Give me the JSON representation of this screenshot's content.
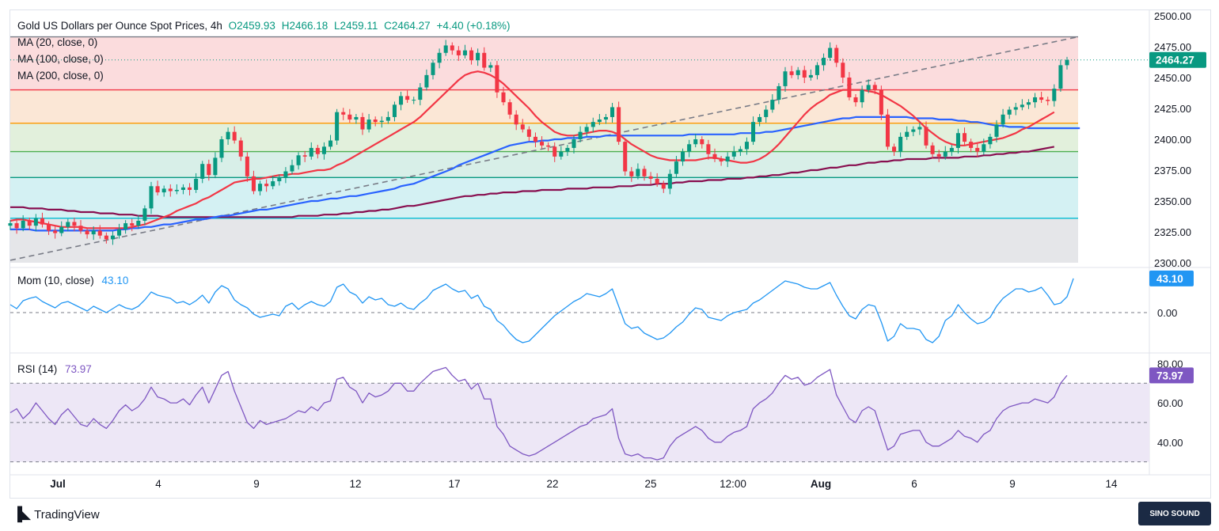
{
  "header": {
    "symbol": "Gold US Dollars per Ounce Spot Prices, 4h",
    "open": "O2459.93",
    "high": "H2466.18",
    "low": "L2459.11",
    "close": "C2464.27",
    "change": "+4.40 (+0.18%)"
  },
  "indicators": {
    "ma20": "MA (20, close, 0)",
    "ma100": "MA (100, close, 0)",
    "ma200": "MA (200, close, 0)",
    "mom_label": "Mom (10, close)",
    "mom_value": "43.10",
    "rsi_label": "RSI (14)",
    "rsi_value": "73.97"
  },
  "price_badge": "2464.27",
  "footer": {
    "brand": "TradingView",
    "watermark": "SINO SOUND"
  },
  "colors": {
    "up": "#089981",
    "down": "#f23645",
    "ma20": "#f23645",
    "ma100": "#2962ff",
    "ma200": "#880e4f",
    "mom": "#2196f3",
    "rsi": "#7e57c2"
  },
  "chart_data": [
    {
      "type": "candlestick",
      "title": "Gold US Dollars per Ounce Spot Prices, 4h",
      "ylim": [
        2300,
        2500
      ],
      "yticks": [
        "2500.00",
        "2475.00",
        "2450.00",
        "2425.00",
        "2400.00",
        "2375.00",
        "2350.00",
        "2325.00",
        "2300.00"
      ],
      "xticks": [
        "Jul",
        "4",
        "9",
        "12",
        "17",
        "22",
        "25",
        "12:00",
        "Aug",
        "6",
        "9",
        "14"
      ],
      "fib_levels": [
        2483,
        2440,
        2413,
        2390,
        2369,
        2336
      ],
      "closes": [
        2332,
        2328,
        2334,
        2330,
        2336,
        2331,
        2326,
        2324,
        2329,
        2333,
        2330,
        2326,
        2323,
        2326,
        2322,
        2319,
        2322,
        2327,
        2332,
        2330,
        2334,
        2344,
        2362,
        2357,
        2360,
        2358,
        2359,
        2361,
        2359,
        2368,
        2380,
        2371,
        2385,
        2400,
        2406,
        2399,
        2386,
        2370,
        2358,
        2364,
        2362,
        2366,
        2369,
        2374,
        2379,
        2387,
        2386,
        2393,
        2388,
        2394,
        2399,
        2422,
        2420,
        2416,
        2418,
        2408,
        2416,
        2414,
        2415,
        2418,
        2428,
        2435,
        2432,
        2432,
        2442,
        2452,
        2462,
        2470,
        2476,
        2472,
        2468,
        2472,
        2464,
        2470,
        2458,
        2460,
        2438,
        2430,
        2420,
        2412,
        2408,
        2402,
        2398,
        2395,
        2394,
        2386,
        2390,
        2393,
        2400,
        2406,
        2410,
        2414,
        2416,
        2418,
        2426,
        2398,
        2374,
        2370,
        2376,
        2370,
        2368,
        2364,
        2360,
        2372,
        2382,
        2390,
        2396,
        2400,
        2396,
        2388,
        2384,
        2382,
        2386,
        2390,
        2392,
        2398,
        2414,
        2418,
        2424,
        2432,
        2443,
        2455,
        2452,
        2456,
        2450,
        2452,
        2460,
        2466,
        2474,
        2462,
        2450,
        2434,
        2430,
        2440,
        2444,
        2440,
        2420,
        2394,
        2390,
        2402,
        2406,
        2408,
        2410,
        2395,
        2388,
        2386,
        2390,
        2393,
        2405,
        2398,
        2393,
        2390,
        2396,
        2402,
        2412,
        2420,
        2424,
        2426,
        2428,
        2430,
        2434,
        2432,
        2431,
        2441,
        2460,
        2464.27
      ],
      "ma20": [
        2334,
        2335,
        2335,
        2334,
        2333,
        2332,
        2331,
        2330,
        2329,
        2329,
        2329,
        2329,
        2328,
        2328,
        2328,
        2328,
        2328,
        2328,
        2328,
        2329,
        2330,
        2331,
        2333,
        2335,
        2337,
        2339,
        2342,
        2344,
        2346,
        2348,
        2351,
        2353,
        2356,
        2359,
        2362,
        2365,
        2366,
        2367,
        2368,
        2368,
        2369,
        2370,
        2371,
        2371,
        2372,
        2372,
        2373,
        2374,
        2375,
        2375,
        2376,
        2379,
        2381,
        2384,
        2387,
        2390,
        2393,
        2396,
        2399,
        2402,
        2405,
        2408,
        2411,
        2414,
        2418,
        2423,
        2428,
        2433,
        2438,
        2443,
        2448,
        2452,
        2454,
        2455,
        2454,
        2452,
        2449,
        2445,
        2440,
        2435,
        2430,
        2425,
        2419,
        2414,
        2410,
        2406,
        2404,
        2403,
        2403,
        2404,
        2405,
        2406,
        2407,
        2407,
        2406,
        2404,
        2400,
        2396,
        2393,
        2390,
        2387,
        2385,
        2384,
        2383,
        2383,
        2383,
        2383,
        2383,
        2384,
        2385,
        2385,
        2384,
        2383,
        2382,
        2381,
        2381,
        2382,
        2384,
        2387,
        2391,
        2396,
        2402,
        2408,
        2414,
        2420,
        2425,
        2429,
        2432,
        2436,
        2438,
        2440,
        2440,
        2440,
        2440,
        2439,
        2438,
        2436,
        2433,
        2430,
        2427,
        2423,
        2419,
        2414,
        2409,
        2405,
        2401,
        2398,
        2396,
        2395,
        2395,
        2396,
        2397,
        2398,
        2399,
        2400,
        2401,
        2403,
        2405,
        2408,
        2410,
        2413,
        2416,
        2419,
        2422
      ],
      "ma100": [
        2327,
        2327,
        2327,
        2327,
        2326,
        2326,
        2326,
        2326,
        2326,
        2326,
        2326,
        2326,
        2326,
        2326,
        2326,
        2326,
        2326,
        2327,
        2327,
        2328,
        2328,
        2329,
        2329,
        2330,
        2331,
        2331,
        2332,
        2333,
        2334,
        2335,
        2335,
        2336,
        2337,
        2338,
        2338,
        2339,
        2340,
        2341,
        2342,
        2343,
        2343,
        2344,
        2345,
        2346,
        2347,
        2348,
        2349,
        2350,
        2350,
        2351,
        2352,
        2352,
        2353,
        2354,
        2354,
        2355,
        2356,
        2357,
        2358,
        2359,
        2360,
        2362,
        2363,
        2364,
        2366,
        2368,
        2370,
        2372,
        2374,
        2376,
        2379,
        2381,
        2383,
        2385,
        2387,
        2389,
        2391,
        2393,
        2395,
        2396,
        2397,
        2398,
        2398,
        2399,
        2399,
        2400,
        2400,
        2401,
        2401,
        2401,
        2402,
        2402,
        2402,
        2403,
        2403,
        2403,
        2403,
        2403,
        2403,
        2403,
        2403,
        2403,
        2403,
        2403,
        2403,
        2403,
        2404,
        2404,
        2404,
        2404,
        2404,
        2404,
        2404,
        2404,
        2405,
        2405,
        2405,
        2405,
        2406,
        2406,
        2407,
        2408,
        2409,
        2410,
        2411,
        2412,
        2413,
        2414,
        2415,
        2416,
        2417,
        2417,
        2418,
        2418,
        2418,
        2418,
        2418,
        2418,
        2418,
        2418,
        2418,
        2417,
        2417,
        2417,
        2417,
        2416,
        2416,
        2416,
        2415,
        2415,
        2414,
        2414,
        2413,
        2412,
        2411,
        2411,
        2410,
        2410,
        2410,
        2409,
        2409,
        2409,
        2409,
        2409,
        2409,
        2409,
        2409,
        2409
      ],
      "ma200": [
        2345,
        2345,
        2345,
        2344,
        2344,
        2344,
        2343,
        2343,
        2343,
        2342,
        2342,
        2341,
        2341,
        2341,
        2340,
        2340,
        2340,
        2339,
        2339,
        2339,
        2338,
        2338,
        2338,
        2338,
        2337,
        2337,
        2337,
        2337,
        2337,
        2337,
        2337,
        2337,
        2337,
        2337,
        2337,
        2337,
        2337,
        2337,
        2337,
        2337,
        2337,
        2337,
        2337,
        2337,
        2337,
        2338,
        2338,
        2338,
        2338,
        2339,
        2339,
        2339,
        2340,
        2340,
        2341,
        2341,
        2342,
        2342,
        2343,
        2343,
        2344,
        2345,
        2346,
        2346,
        2347,
        2348,
        2349,
        2350,
        2351,
        2352,
        2353,
        2354,
        2354,
        2355,
        2355,
        2356,
        2356,
        2357,
        2357,
        2357,
        2358,
        2358,
        2358,
        2359,
        2359,
        2359,
        2359,
        2360,
        2360,
        2360,
        2360,
        2361,
        2361,
        2361,
        2361,
        2362,
        2362,
        2362,
        2363,
        2363,
        2363,
        2364,
        2364,
        2364,
        2365,
        2365,
        2366,
        2366,
        2366,
        2367,
        2367,
        2367,
        2368,
        2368,
        2368,
        2369,
        2369,
        2370,
        2370,
        2371,
        2371,
        2372,
        2373,
        2373,
        2374,
        2375,
        2375,
        2376,
        2377,
        2377,
        2378,
        2379,
        2379,
        2380,
        2381,
        2381,
        2382,
        2382,
        2383,
        2383,
        2384,
        2384,
        2384,
        2384,
        2385,
        2385,
        2385,
        2385,
        2385,
        2386,
        2386,
        2386,
        2387,
        2387,
        2388,
        2388,
        2389,
        2389,
        2390,
        2390,
        2391,
        2392,
        2393,
        2394
      ]
    },
    {
      "type": "line",
      "title": "Mom (10, close)",
      "yticks": [
        "0.00"
      ],
      "values": [
        10,
        5,
        15,
        18,
        20,
        14,
        10,
        6,
        12,
        14,
        10,
        6,
        2,
        8,
        4,
        0,
        5,
        10,
        6,
        4,
        8,
        16,
        26,
        22,
        20,
        18,
        12,
        14,
        10,
        15,
        22,
        12,
        26,
        34,
        30,
        16,
        10,
        6,
        -2,
        -6,
        -4,
        -2,
        -4,
        8,
        12,
        4,
        10,
        14,
        10,
        8,
        14,
        32,
        36,
        26,
        22,
        12,
        20,
        16,
        18,
        10,
        8,
        12,
        6,
        4,
        12,
        18,
        28,
        32,
        36,
        30,
        26,
        28,
        18,
        22,
        8,
        4,
        -10,
        -16,
        -26,
        -34,
        -38,
        -36,
        -28,
        -20,
        -12,
        -4,
        2,
        8,
        14,
        18,
        24,
        22,
        20,
        24,
        30,
        8,
        -14,
        -20,
        -18,
        -26,
        -30,
        -34,
        -32,
        -26,
        -18,
        -12,
        -2,
        6,
        4,
        -6,
        -8,
        -10,
        -4,
        0,
        2,
        4,
        12,
        16,
        22,
        28,
        34,
        40,
        38,
        36,
        32,
        30,
        30,
        34,
        38,
        22,
        8,
        -4,
        -8,
        4,
        10,
        8,
        -12,
        -36,
        -30,
        -14,
        -20,
        -20,
        -22,
        -34,
        -38,
        -30,
        -10,
        -4,
        10,
        0,
        -8,
        -14,
        -12,
        -6,
        8,
        18,
        24,
        30,
        30,
        26,
        28,
        32,
        22,
        10,
        12,
        20,
        43.1
      ]
    },
    {
      "type": "line",
      "title": "RSI (14)",
      "ylim": [
        30,
        80
      ],
      "yticks": [
        "80.00",
        "60.00",
        "40.00"
      ],
      "values": [
        55,
        57,
        52,
        55,
        60,
        56,
        52,
        49,
        54,
        57,
        53,
        49,
        48,
        52,
        49,
        47,
        51,
        56,
        59,
        56,
        58,
        62,
        68,
        63,
        62,
        60,
        60,
        62,
        59,
        64,
        68,
        60,
        67,
        74,
        76,
        66,
        58,
        50,
        47,
        51,
        49,
        50,
        51,
        52,
        54,
        56,
        55,
        58,
        56,
        60,
        61,
        72,
        73,
        68,
        66,
        60,
        65,
        63,
        64,
        66,
        70,
        70,
        66,
        66,
        70,
        73,
        76,
        77,
        78,
        74,
        71,
        72,
        67,
        70,
        62,
        62,
        48,
        44,
        38,
        36,
        34,
        33,
        34,
        36,
        38,
        40,
        42,
        44,
        46,
        48,
        49,
        52,
        53,
        54,
        57,
        42,
        34,
        33,
        34,
        32,
        32,
        31,
        32,
        38,
        42,
        44,
        46,
        48,
        46,
        42,
        40,
        40,
        43,
        45,
        46,
        48,
        57,
        60,
        62,
        65,
        70,
        74,
        72,
        73,
        69,
        70,
        73,
        75,
        77,
        64,
        58,
        52,
        50,
        56,
        58,
        56,
        46,
        36,
        38,
        44,
        45,
        46,
        46,
        40,
        38,
        38,
        40,
        42,
        46,
        43,
        42,
        40,
        44,
        46,
        52,
        56,
        58,
        59,
        60,
        60,
        62,
        61,
        60,
        63,
        70,
        73.97
      ]
    }
  ]
}
